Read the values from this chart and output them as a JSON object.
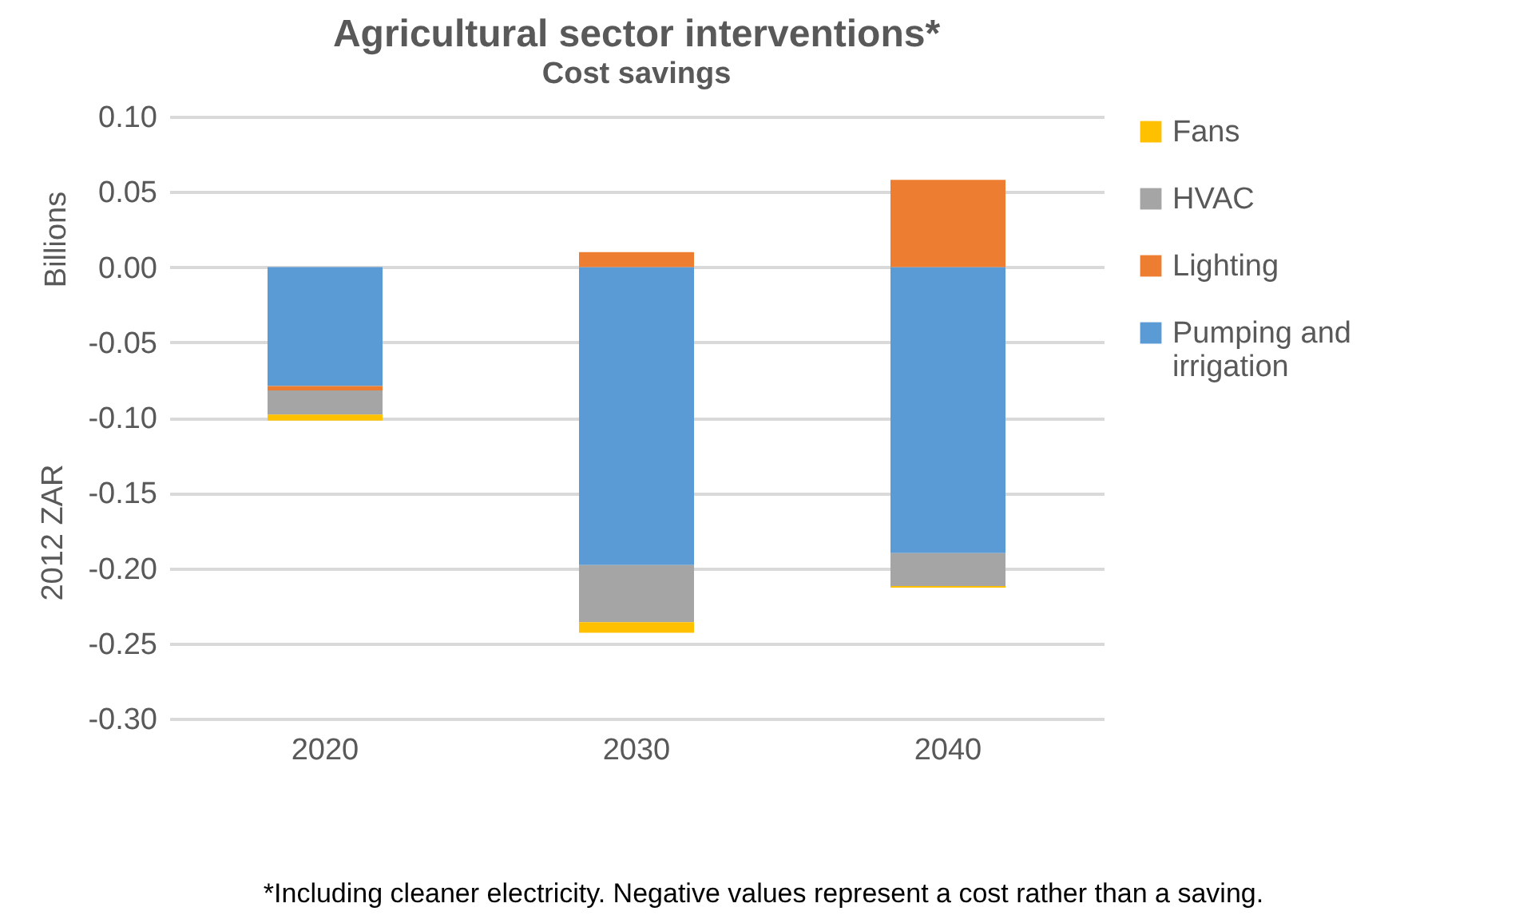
{
  "chart_data": {
    "type": "bar",
    "title": "Agricultural sector interventions*",
    "subtitle": "Cost savings",
    "ylabel": "2012 ZAR",
    "categories": [
      "2020",
      "2030",
      "2040"
    ],
    "stacked": true,
    "series": [
      {
        "name": "Pumping and irrigation",
        "color": "#5b9bd5",
        "values": [
          -0.079,
          -0.198,
          -0.19
        ]
      },
      {
        "name": "Lighting",
        "color": "#ed7d31",
        "values": [
          -0.003,
          0.01,
          0.058
        ]
      },
      {
        "name": "HVAC",
        "color": "#a5a5a5",
        "values": [
          -0.016,
          -0.038,
          -0.022
        ]
      },
      {
        "name": "Fans",
        "color": "#ffc000",
        "values": [
          -0.004,
          -0.007,
          -0.001
        ]
      }
    ],
    "ylim": [
      -0.3,
      0.1
    ],
    "yticks": [
      {
        "value": -0.3,
        "label": "-0.30"
      },
      {
        "value": -0.25,
        "label": "-0.25"
      },
      {
        "value": -0.2,
        "label": "-0.20"
      },
      {
        "value": -0.15,
        "label": "-0.15"
      },
      {
        "value": -0.1,
        "label": "-0.10"
      },
      {
        "value": -0.05,
        "label": "-0.05"
      },
      {
        "value": 0,
        "label": "0.00"
      },
      {
        "value": 0.05,
        "label": "0.05"
      },
      {
        "value": 0.1,
        "label": "0.10"
      }
    ],
    "grid": "y",
    "legend": "right",
    "annotations": [
      "Billions",
      "*Including cleaner electricity. Negative values represent a cost rather than a saving."
    ]
  }
}
